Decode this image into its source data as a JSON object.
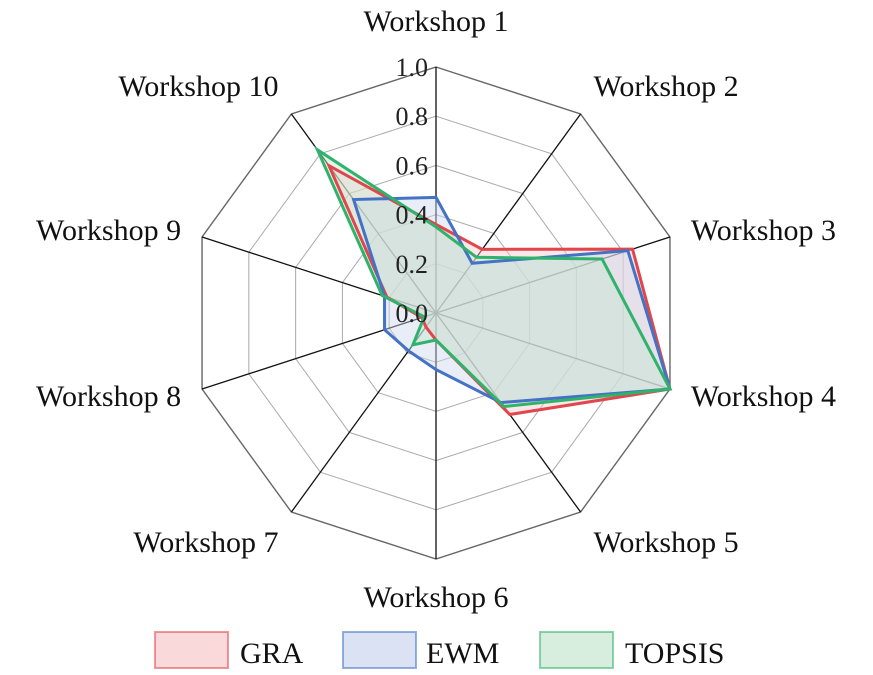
{
  "chart_data": {
    "type": "radar",
    "categories": [
      "Workshop 1",
      "Workshop 2",
      "Workshop 3",
      "Workshop 4",
      "Workshop 5",
      "Workshop 6",
      "Workshop 7",
      "Workshop 8",
      "Workshop 9",
      "Workshop 10"
    ],
    "rlim": [
      0,
      1.0
    ],
    "ticks": [
      "0.0",
      "0.2",
      "0.4",
      "0.6",
      "0.8",
      "1.0"
    ],
    "tick_values": [
      0,
      0.2,
      0.4,
      0.6,
      0.8,
      1.0
    ],
    "series": [
      {
        "name": "GRA",
        "color": "#e0474c",
        "fill": "#f6c9c9",
        "values": [
          0.36,
          0.32,
          0.84,
          1.0,
          0.51,
          0.11,
          0.07,
          0.06,
          0.21,
          0.74
        ]
      },
      {
        "name": "EWM",
        "color": "#4472c4",
        "fill": "#ccd6ef",
        "values": [
          0.47,
          0.25,
          0.82,
          1.0,
          0.45,
          0.23,
          0.19,
          0.22,
          0.22,
          0.57
        ]
      },
      {
        "name": "TOPSIS",
        "color": "#2fb36b",
        "fill": "#c6e6cf",
        "values": [
          0.35,
          0.28,
          0.71,
          1.0,
          0.47,
          0.11,
          0.16,
          0.05,
          0.23,
          0.82
        ]
      }
    ],
    "grid": true,
    "legend_position": "bottom"
  }
}
